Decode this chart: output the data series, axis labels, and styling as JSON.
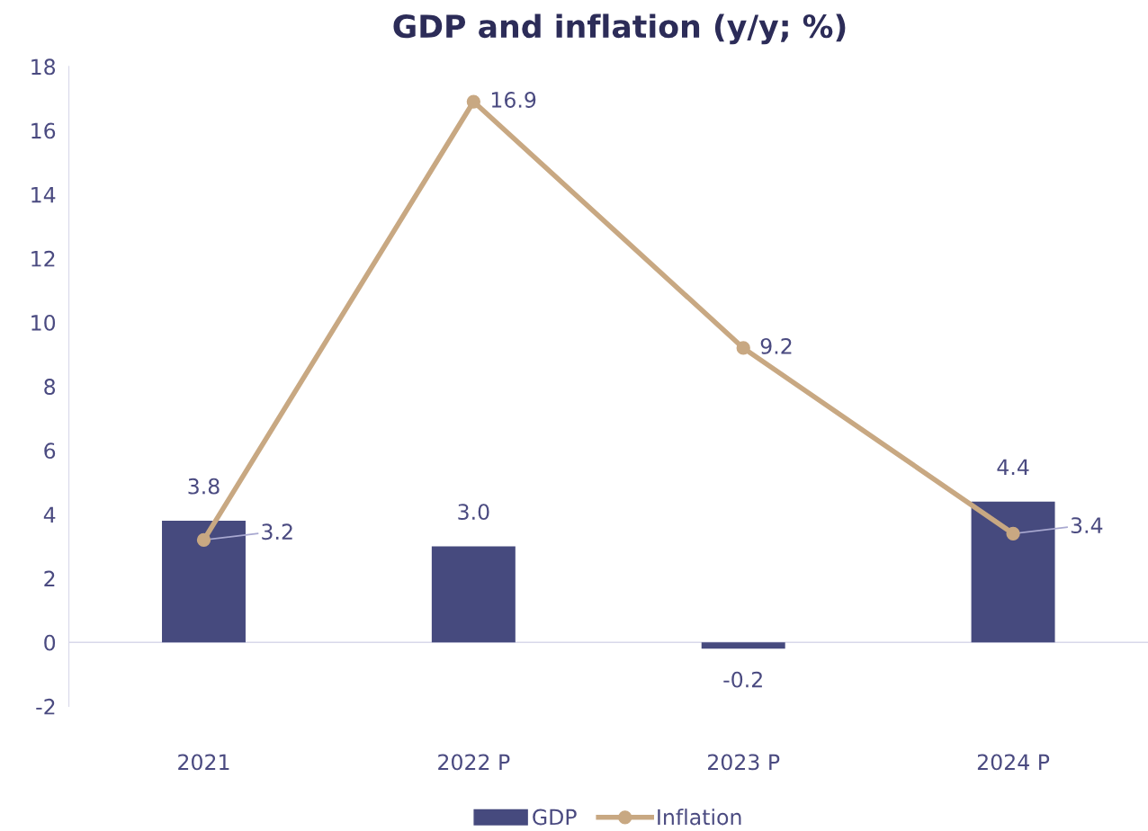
{
  "chart_data": {
    "type": "bar",
    "title": "GDP and inflation (y/y; %)",
    "categories": [
      "2021",
      "2022 P",
      "2023 P",
      "2024 P"
    ],
    "series": [
      {
        "name": "GDP",
        "color": "#464a7e",
        "values": [
          3.8,
          3.0,
          -0.2,
          4.4
        ],
        "value_labels": [
          "3.8",
          "3.0",
          "-0.2",
          "4.4"
        ]
      },
      {
        "name": "Inflation",
        "type": "line",
        "color": "#c8a882",
        "values": [
          3.2,
          16.9,
          9.2,
          3.4
        ],
        "value_labels": [
          "3.2",
          "16.9",
          "9.2",
          "3.4"
        ]
      }
    ],
    "ylim": [
      -2,
      18
    ],
    "yticks": [
      -2,
      0,
      2,
      4,
      6,
      8,
      10,
      12,
      14,
      16,
      18
    ],
    "ref_lines": [
      {
        "axis": "y",
        "value": 0,
        "color": "#d8d8ea"
      }
    ],
    "legend": "bottom",
    "marker": "circle",
    "grid": false
  }
}
